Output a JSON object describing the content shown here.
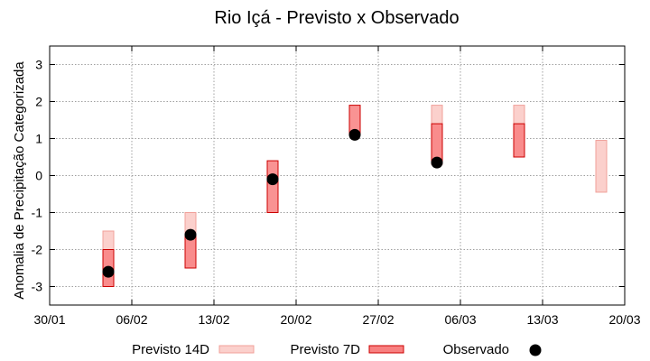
{
  "chart_data": {
    "type": "boxplot",
    "title": "Rio Içá - Previsto x Observado",
    "xlabel": "",
    "ylabel": "Anomalia de Precipitação Categorizada",
    "xticks": [
      "30/01",
      "06/02",
      "13/02",
      "20/02",
      "27/02",
      "06/03",
      "13/03",
      "20/03"
    ],
    "yticks": [
      "-3",
      "-2",
      "-1",
      "0",
      "1",
      "2",
      "3"
    ],
    "ylim": [
      -3.5,
      3.5
    ],
    "grid": true,
    "legend_position": "bottom",
    "legend": [
      {
        "name": "Previsto 14D",
        "kind": "box14"
      },
      {
        "name": "Previsto 7D",
        "kind": "box7"
      },
      {
        "name": "Observado",
        "kind": "dot"
      }
    ],
    "colors": {
      "box14_fill": "#fbd0cc",
      "box14_stroke": "#f0a09a",
      "box7_fill": "#f88080",
      "box7_stroke": "#cc0000",
      "observed": "#000000",
      "grid": "#a0a0a0"
    },
    "weeks": [
      {
        "x": 5,
        "p14": [
          -3.0,
          -1.5
        ],
        "p7": [
          -3.0,
          -2.0
        ],
        "obs": -2.6
      },
      {
        "x": 12,
        "p14": [
          -2.5,
          -1.0
        ],
        "p7": [
          -2.5,
          -1.6
        ],
        "obs": -1.6
      },
      {
        "x": 19,
        "p14": null,
        "p7": [
          -1.0,
          0.4
        ],
        "obs": -0.1
      },
      {
        "x": 26,
        "p14": null,
        "p7": [
          1.1,
          1.9
        ],
        "obs": 1.1
      },
      {
        "x": 33,
        "p14": [
          0.3,
          1.9
        ],
        "p7": [
          0.35,
          1.4
        ],
        "obs": 0.35
      },
      {
        "x": 40,
        "p14": [
          0.5,
          1.9
        ],
        "p7": [
          0.5,
          1.4
        ],
        "obs": null
      },
      {
        "x": 47,
        "p14": [
          -0.45,
          0.95
        ],
        "p7": null,
        "obs": null
      }
    ]
  }
}
